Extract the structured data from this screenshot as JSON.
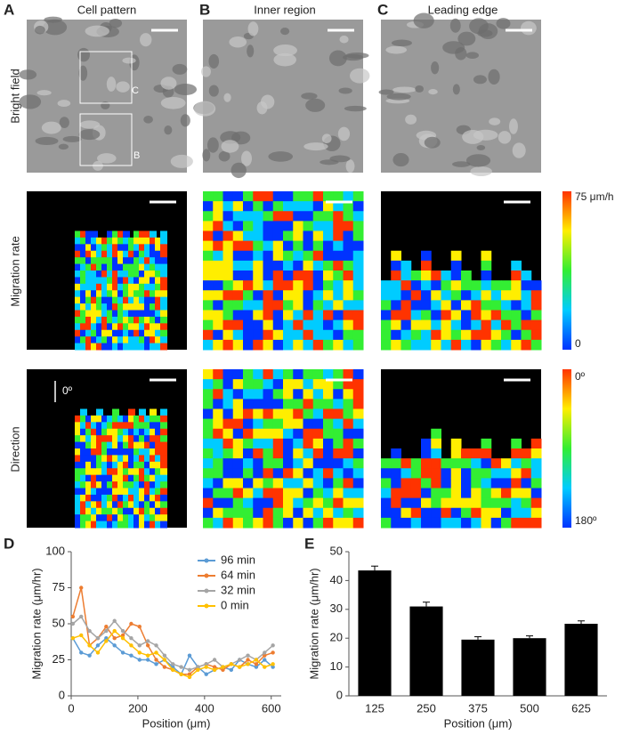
{
  "panels": {
    "A": "A",
    "B": "B",
    "C": "C",
    "D": "D",
    "E": "E"
  },
  "columns": [
    "Cell pattern",
    "Inner region",
    "Leading edge"
  ],
  "rows": [
    "Bright field",
    "Migration rate",
    "Direction"
  ],
  "insets": {
    "c": "C",
    "b": "B",
    "arrow": "0º"
  },
  "colorbars": {
    "rate_top": "75 μm/h",
    "rate_bottom": "0",
    "dir_top": "0º",
    "dir_bottom": "180º"
  },
  "chart_data": [
    {
      "type": "line",
      "y_label": "Migration rate (μm/hr)",
      "x_label": "Position (μm)",
      "x": [
        5,
        30,
        55,
        80,
        105,
        130,
        155,
        180,
        205,
        230,
        255,
        280,
        305,
        330,
        355,
        380,
        405,
        430,
        455,
        480,
        505,
        530,
        555,
        580,
        605
      ],
      "xlim": [
        0,
        630
      ],
      "xticks": [
        0,
        200,
        400,
        600
      ],
      "ylim": [
        0,
        100
      ],
      "yticks": [
        0,
        25,
        50,
        75,
        100
      ],
      "legend": "upper right",
      "series": [
        {
          "name": "96 min",
          "color": "#5b9bd5",
          "values": [
            40,
            30,
            28,
            35,
            40,
            35,
            30,
            28,
            25,
            25,
            22,
            25,
            20,
            15,
            28,
            20,
            15,
            18,
            20,
            18,
            25,
            22,
            20,
            25,
            20
          ]
        },
        {
          "name": "64 min",
          "color": "#ed7d31",
          "values": [
            55,
            75,
            35,
            40,
            48,
            40,
            42,
            50,
            48,
            35,
            25,
            20,
            18,
            15,
            15,
            20,
            22,
            20,
            18,
            22,
            20,
            25,
            22,
            28,
            30
          ]
        },
        {
          "name": "32 min",
          "color": "#a5a5a5",
          "values": [
            50,
            55,
            45,
            40,
            45,
            52,
            45,
            40,
            35,
            38,
            35,
            28,
            22,
            20,
            18,
            20,
            22,
            25,
            20,
            22,
            25,
            28,
            25,
            30,
            35
          ]
        },
        {
          "name": "0 min",
          "color": "#ffc000",
          "values": [
            40,
            42,
            35,
            30,
            38,
            45,
            40,
            35,
            30,
            28,
            30,
            25,
            18,
            15,
            13,
            18,
            20,
            18,
            20,
            22,
            20,
            22,
            25,
            20,
            22
          ]
        }
      ]
    },
    {
      "type": "bar",
      "y_label": "Migration rate (μm/hr)",
      "x_label": "Position (μm)",
      "categories": [
        "125",
        "250",
        "375",
        "500",
        "625"
      ],
      "values": [
        43.5,
        31,
        19.5,
        20,
        25
      ],
      "errors": [
        1.5,
        1.5,
        1,
        0.8,
        1
      ],
      "color": "#000000",
      "ylim": [
        0,
        50
      ],
      "yticks": [
        0,
        10,
        20,
        30,
        40,
        50
      ]
    }
  ]
}
